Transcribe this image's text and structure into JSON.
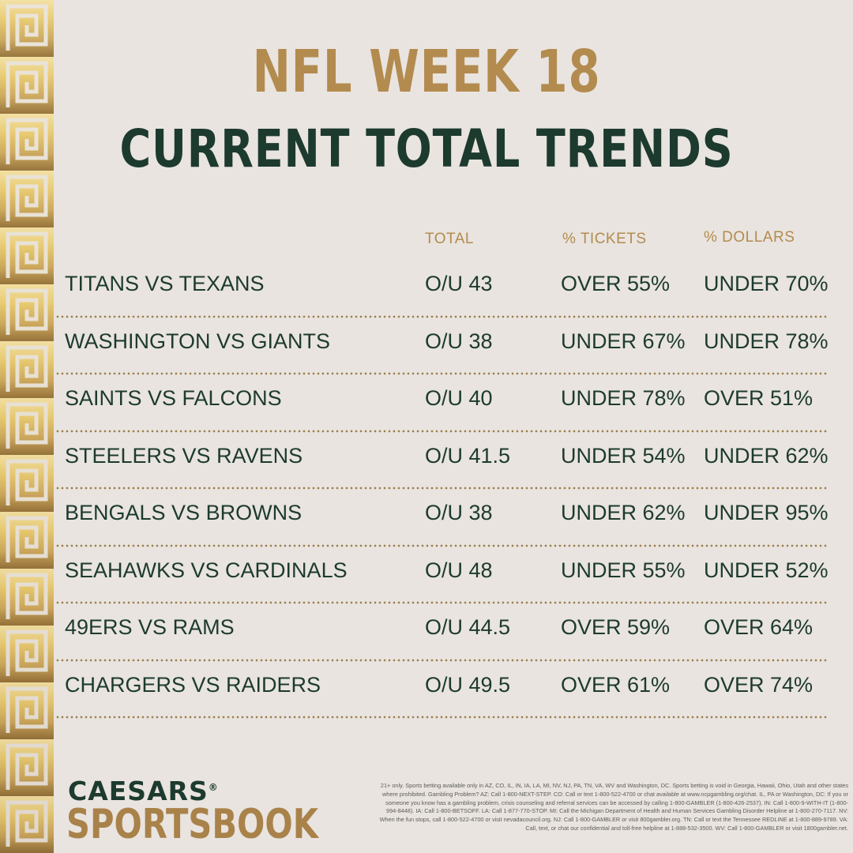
{
  "header": {
    "title": "NFL WEEK 18",
    "subtitle": "CURRENT TOTAL TRENDS"
  },
  "table": {
    "columns": [
      "TOTAL",
      "% TICKETS",
      "% DOLLARS"
    ],
    "rows": [
      {
        "matchup": "TITANS VS TEXANS",
        "total": "O/U 43",
        "tickets": "OVER 55%",
        "dollars": "UNDER 70%"
      },
      {
        "matchup": "WASHINGTON VS GIANTS",
        "total": "O/U 38",
        "tickets": "UNDER 67%",
        "dollars": "UNDER 78%"
      },
      {
        "matchup": "SAINTS VS FALCONS",
        "total": "O/U 40",
        "tickets": "UNDER 78%",
        "dollars": "OVER 51%"
      },
      {
        "matchup": "STEELERS VS RAVENS",
        "total": "O/U 41.5",
        "tickets": "UNDER 54%",
        "dollars": "UNDER 62%"
      },
      {
        "matchup": "BENGALS VS BROWNS",
        "total": "O/U 38",
        "tickets": "UNDER 62%",
        "dollars": "UNDER 95%"
      },
      {
        "matchup": "SEAHAWKS VS CARDINALS",
        "total": "O/U 48",
        "tickets": "UNDER 55%",
        "dollars": "UNDER 52%"
      },
      {
        "matchup": "49ERS VS RAMS",
        "total": "O/U 44.5",
        "tickets": "OVER 59%",
        "dollars": "OVER 64%"
      },
      {
        "matchup": "CHARGERS VS RAIDERS",
        "total": "O/U 49.5",
        "tickets": "OVER 61%",
        "dollars": "OVER 74%"
      }
    ]
  },
  "logo": {
    "line1": "CAESARS",
    "registered": "®",
    "line2": "SPORTSBOOK"
  },
  "disclaimer": "21+ only. Sports betting available only in AZ, CO, IL, IN, IA, LA, MI, NV, NJ, PA, TN, VA, WV and Washington, DC. Sports betting is void in Georgia, Hawaii, Ohio, Utah and other states where prohibited. Gambling Problem? AZ: Call 1-800-NEXT-STEP. CO: Call or text 1-800-522-4700 or chat available at www.ncpgambling.org/chat. IL, PA or Washington, DC: If you or someone you know has a gambling problem, crisis counseling and referral services can be accessed by calling 1-800-GAMBLER (1-800-426-2537). IN: Call 1-800-9-WITH-IT (1-800-994-8448). IA: Call 1-800-BETSOFF. LA: Call 1-877-770-STOP. MI: Call the Michigan Department of Health and Human Services Gambling Disorder Helpline at 1-800-270-7117. NV: When the fun stops, call 1-800-522-4700 or visit nevadacouncil.org. NJ: Call 1-800-GAMBLER or visit 800gambler.org. TN: Call or text the Tennessee REDLINE at 1-800-889-9789. VA: Call, text, or chat our confidential and toll-free helpline at 1-888-532-3500. WV: Call 1-800-GAMBLER or visit 1800gambler.net.",
  "colors": {
    "background": "#e9e4df",
    "gold": "#b38b4f",
    "green": "#1d3a2f"
  },
  "icons": [
    "greek-key-border-decoration"
  ]
}
